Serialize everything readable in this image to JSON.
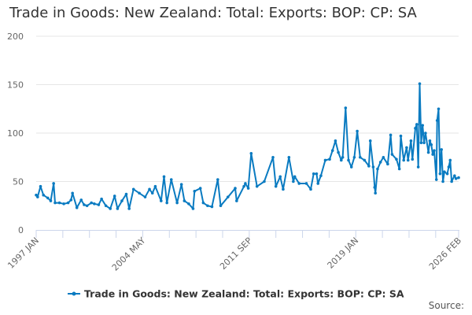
{
  "chart_data": {
    "type": "line",
    "title": "Trade in Goods: New Zealand: Total: Exports: BOP: CP: SA",
    "xlabel": "",
    "ylabel": "",
    "ylim": [
      0,
      200
    ],
    "yticks": [
      0,
      50,
      100,
      150,
      200
    ],
    "xlim": [
      1997.0,
      2026.08
    ],
    "xtick_labels": [
      "1997 JAN",
      "2004 MAY",
      "2011 SEP",
      "2019 JAN",
      "2026 FEB"
    ],
    "xtick_label_positions": [
      1997.0,
      2004.33,
      2011.67,
      2019.0,
      2026.08
    ],
    "grid": true,
    "legend_placement": "bottom",
    "color": "#0a7bc1",
    "series": [
      {
        "name": "Trade in Goods: New Zealand: Total: Exports: BOP: CP: SA",
        "x": [
          1997.0,
          1997.1,
          1997.3,
          1997.5,
          1997.8,
          1998.0,
          1998.2,
          1998.3,
          1998.6,
          1998.9,
          1999.2,
          1999.4,
          1999.5,
          1999.8,
          2000.1,
          2000.3,
          2000.5,
          2000.8,
          2001.0,
          2001.3,
          2001.5,
          2001.8,
          2002.1,
          2002.4,
          2002.6,
          2002.9,
          2003.2,
          2003.4,
          2003.7,
          2004.1,
          2004.5,
          2004.8,
          2005.0,
          2005.2,
          2005.6,
          2005.8,
          2006.0,
          2006.3,
          2006.7,
          2007.0,
          2007.2,
          2007.5,
          2007.8,
          2007.9,
          2008.3,
          2008.5,
          2008.8,
          2009.1,
          2009.5,
          2009.7,
          2010.2,
          2010.7,
          2010.8,
          2011.3,
          2011.4,
          2011.6,
          2011.8,
          2012.2,
          2012.7,
          2013.3,
          2013.5,
          2013.8,
          2014.0,
          2014.4,
          2014.7,
          2014.8,
          2015.1,
          2015.6,
          2015.9,
          2016.1,
          2016.3,
          2016.4,
          2016.6,
          2016.9,
          2017.2,
          2017.4,
          2017.6,
          2017.8,
          2018.0,
          2018.1,
          2018.3,
          2018.5,
          2018.7,
          2018.9,
          2019.1,
          2019.3,
          2019.6,
          2019.9,
          2020.0,
          2020.2,
          2020.3,
          2020.35,
          2020.5,
          2020.7,
          2020.9,
          2021.2,
          2021.4,
          2021.5,
          2021.8,
          2022.0,
          2022.1,
          2022.3,
          2022.5,
          2022.6,
          2022.8,
          2022.9,
          2023.1,
          2023.2,
          2023.3,
          2023.4,
          2023.5,
          2023.6,
          2023.7,
          2023.8,
          2024.0,
          2024.1,
          2024.2,
          2024.3,
          2024.4,
          2024.55,
          2024.6,
          2024.7,
          2024.8,
          2024.9,
          2025.0,
          2025.1,
          2025.3,
          2025.4,
          2025.5,
          2025.6,
          2025.8,
          2025.9,
          2026.08
        ],
        "y": [
          36,
          34,
          45,
          36,
          33,
          30,
          48,
          28,
          28,
          27,
          28,
          31,
          38,
          23,
          31,
          26,
          25,
          28,
          27,
          26,
          32,
          25,
          22,
          35,
          22,
          30,
          37,
          22,
          42,
          38,
          34,
          42,
          38,
          45,
          30,
          55,
          28,
          52,
          28,
          47,
          30,
          27,
          22,
          40,
          43,
          28,
          25,
          24,
          52,
          25,
          34,
          43,
          30,
          45,
          48,
          43,
          79,
          45,
          50,
          75,
          45,
          55,
          42,
          75,
          50,
          55,
          48,
          48,
          42,
          58,
          58,
          48,
          56,
          72,
          73,
          82,
          92,
          80,
          72,
          75,
          126,
          72,
          65,
          75,
          102,
          75,
          72,
          66,
          92,
          65,
          44,
          38,
          63,
          70,
          75,
          68,
          98,
          78,
          73,
          63,
          97,
          72,
          85,
          72,
          92,
          73,
          105,
          109,
          65,
          151,
          90,
          108,
          90,
          100,
          80,
          92,
          88,
          78,
          82,
          52,
          113,
          125,
          58,
          83,
          50,
          60,
          58,
          65,
          72,
          50,
          56,
          53,
          54
        ]
      }
    ]
  },
  "source_label": "Source:"
}
